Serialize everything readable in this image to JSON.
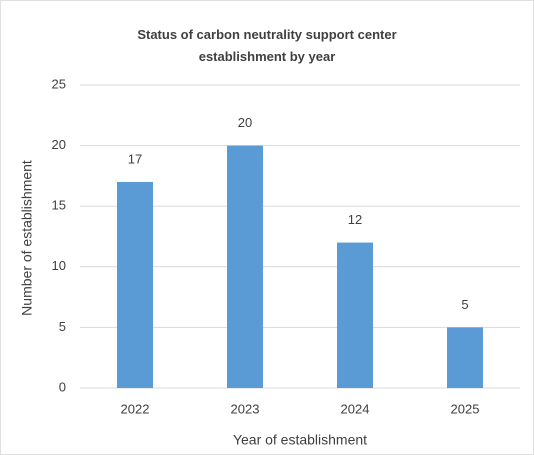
{
  "chart_data": {
    "type": "bar",
    "title": "Status of carbon neutrality support center establishment by year",
    "x_label": "Year of establishment",
    "y_label": "Number of establishment",
    "categories": [
      "2022",
      "2023",
      "2024",
      "2025"
    ],
    "values": [
      17,
      20,
      12,
      5
    ],
    "color": "#5b9bd5",
    "ylim": [
      0,
      25
    ],
    "yticks": [
      0,
      5,
      10,
      15,
      20,
      25
    ],
    "grid": true
  }
}
